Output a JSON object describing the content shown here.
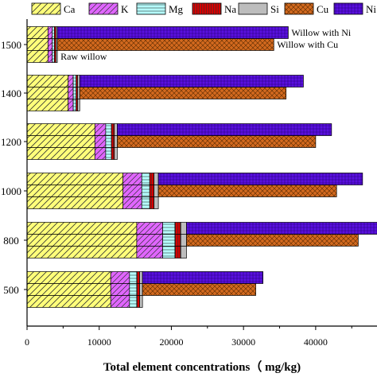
{
  "chart_data": {
    "type": "bar",
    "orientation": "horizontal",
    "stacked": true,
    "xlabel": "Total element concentrations（ mg/kg)",
    "xlim": [
      0,
      48500
    ],
    "x_ticks": [
      "0",
      "10000",
      "20000",
      "30000",
      "40000"
    ],
    "categories": [
      "500",
      "800",
      "1000",
      "1200",
      "1400",
      "1500"
    ],
    "row_labels": [
      "Raw willow",
      "Willow with Cu",
      "Willow with Ni"
    ],
    "legend": [
      "Ca",
      "K",
      "Mg",
      "Na",
      "Si",
      "Cu",
      "Ni"
    ],
    "legend_position": "top",
    "colors": {
      "Ca": "#ffff7a",
      "K": "#e066ff",
      "Mg": "#b5ffff",
      "Na": "#d40000",
      "Si": "#bdbdbd",
      "Cu": "#d2691e",
      "Ni": "#5a10e0"
    },
    "series": [
      {
        "name": "Ca",
        "values": [
          [
            11600,
            11600,
            11600
          ],
          [
            15200,
            15200,
            15200
          ],
          [
            13300,
            13300,
            13300
          ],
          [
            9400,
            9400,
            9400
          ],
          [
            5700,
            5700,
            5700
          ],
          [
            2900,
            2900,
            2900
          ]
        ]
      },
      {
        "name": "K",
        "values": [
          [
            2600,
            2600,
            2600
          ],
          [
            3600,
            3600,
            3600
          ],
          [
            2600,
            2600,
            2600
          ],
          [
            1500,
            1500,
            1500
          ],
          [
            700,
            700,
            700
          ],
          [
            600,
            600,
            600
          ]
        ]
      },
      {
        "name": "Mg",
        "values": [
          [
            1000,
            1000,
            1000
          ],
          [
            1700,
            1700,
            1700
          ],
          [
            1100,
            1100,
            1100
          ],
          [
            800,
            800,
            800
          ],
          [
            400,
            400,
            400
          ],
          [
            300,
            300,
            300
          ]
        ]
      },
      {
        "name": "Na",
        "values": [
          [
            400,
            400,
            400
          ],
          [
            800,
            800,
            800
          ],
          [
            600,
            600,
            600
          ],
          [
            400,
            400,
            400
          ],
          [
            200,
            200,
            200
          ],
          [
            200,
            200,
            200
          ]
        ]
      },
      {
        "name": "Si",
        "values": [
          [
            400,
            400,
            400
          ],
          [
            800,
            800,
            800
          ],
          [
            600,
            600,
            600
          ],
          [
            400,
            400,
            400
          ],
          [
            300,
            300,
            300
          ],
          [
            200,
            200,
            200
          ]
        ]
      },
      {
        "name": "Cu",
        "values": [
          [
            0,
            15700,
            0
          ],
          [
            0,
            23800,
            0
          ],
          [
            0,
            24700,
            0
          ],
          [
            0,
            27500,
            0
          ],
          [
            0,
            28600,
            0
          ],
          [
            0,
            30000,
            0
          ]
        ]
      },
      {
        "name": "Ni",
        "values": [
          [
            0,
            0,
            16700
          ],
          [
            0,
            0,
            26500
          ],
          [
            0,
            0,
            28300
          ],
          [
            0,
            0,
            29700
          ],
          [
            0,
            0,
            31000
          ],
          [
            0,
            0,
            32000
          ]
        ]
      }
    ]
  }
}
